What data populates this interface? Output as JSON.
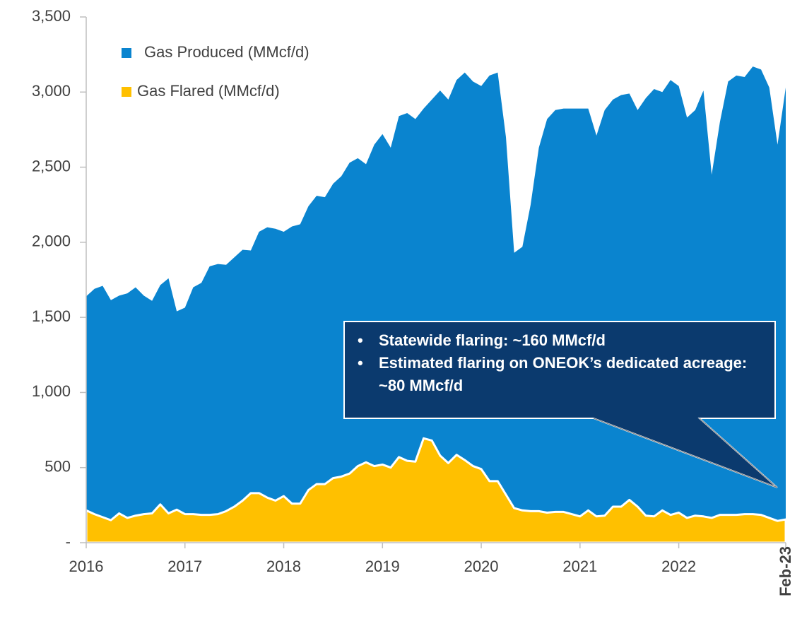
{
  "chart_data": {
    "type": "area",
    "categories": [
      "2016",
      null,
      null,
      null,
      null,
      null,
      null,
      null,
      null,
      null,
      null,
      null,
      "2017",
      null,
      null,
      null,
      null,
      null,
      null,
      null,
      null,
      null,
      null,
      null,
      "2018",
      null,
      null,
      null,
      null,
      null,
      null,
      null,
      null,
      null,
      null,
      null,
      "2019",
      null,
      null,
      null,
      null,
      null,
      null,
      null,
      null,
      null,
      null,
      null,
      "2020",
      null,
      null,
      null,
      null,
      null,
      null,
      null,
      null,
      null,
      null,
      null,
      "2021",
      null,
      null,
      null,
      null,
      null,
      null,
      null,
      null,
      null,
      null,
      null,
      "2022",
      null,
      null,
      null,
      null,
      null,
      null,
      null,
      null,
      null,
      null,
      null,
      null,
      "Feb-23"
    ],
    "series": [
      {
        "name": "Gas Produced (MMcf/d)",
        "color": "#0a84cf",
        "values": [
          1640,
          1690,
          1710,
          1615,
          1645,
          1660,
          1700,
          1645,
          1610,
          1715,
          1760,
          1540,
          1565,
          1700,
          1730,
          1840,
          1855,
          1850,
          1900,
          1950,
          1945,
          2070,
          2100,
          2090,
          2070,
          2105,
          2120,
          2240,
          2310,
          2300,
          2390,
          2440,
          2530,
          2560,
          2520,
          2650,
          2720,
          2630,
          2840,
          2860,
          2820,
          2890,
          2950,
          3010,
          2950,
          3080,
          3130,
          3070,
          3040,
          3110,
          3130,
          2700,
          1930,
          1970,
          2250,
          2630,
          2820,
          2880,
          2890,
          2890,
          2890,
          2890,
          2710,
          2880,
          2950,
          2980,
          2990,
          2880,
          2960,
          3020,
          3000,
          3080,
          3040,
          2830,
          2880,
          3010,
          2450,
          2800,
          3070,
          3110,
          3100,
          3170,
          3150,
          3030,
          2650,
          3030
        ]
      },
      {
        "name": "Gas Flared (MMcf/d)",
        "color": "#ffc000",
        "values": [
          215,
          190,
          170,
          150,
          195,
          165,
          180,
          190,
          195,
          255,
          195,
          220,
          190,
          190,
          185,
          185,
          190,
          210,
          240,
          280,
          330,
          330,
          300,
          280,
          310,
          260,
          260,
          350,
          390,
          390,
          430,
          440,
          460,
          510,
          535,
          510,
          520,
          500,
          570,
          545,
          540,
          695,
          680,
          580,
          530,
          585,
          550,
          510,
          490,
          410,
          410,
          320,
          230,
          215,
          210,
          210,
          200,
          205,
          205,
          190,
          175,
          215,
          175,
          180,
          240,
          240,
          285,
          240,
          180,
          175,
          215,
          185,
          200,
          165,
          180,
          175,
          165,
          185,
          185,
          185,
          190,
          190,
          185,
          165,
          145,
          155
        ]
      }
    ],
    "ylim": [
      0,
      3500
    ],
    "yticks": [
      {
        "value": 0,
        "label": "-"
      },
      500,
      {
        "value": 1000,
        "label": "1,000"
      },
      {
        "value": 1500,
        "label": "1,500"
      },
      {
        "value": 2000,
        "label": "2,000"
      },
      {
        "value": 2500,
        "label": "2,500"
      },
      {
        "value": 3000,
        "label": "3,000"
      },
      {
        "value": 3500,
        "label": "3,500"
      }
    ],
    "grid": false,
    "legend": "upper left",
    "annotations": [
      "Statewide flaring: ~160 MMcf/d",
      "Estimated flaring on ONEOK’s dedicated acreage: ~80 MMcf/d"
    ]
  }
}
